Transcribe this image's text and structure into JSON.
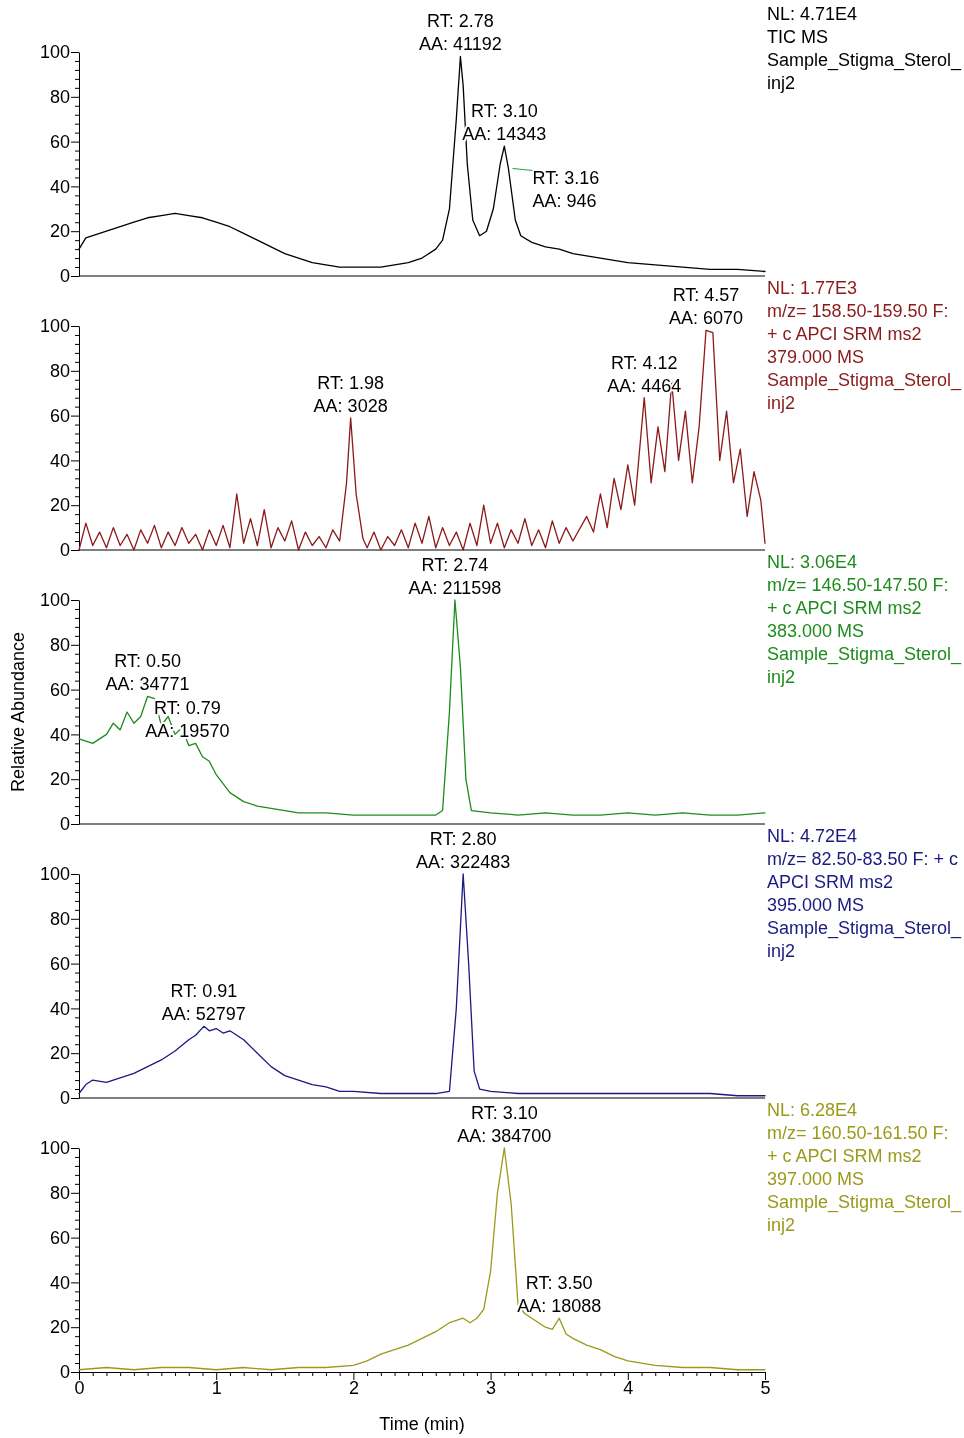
{
  "chart_data": [
    {
      "type": "line",
      "xlim": [
        0,
        5
      ],
      "ylim": [
        0,
        100
      ],
      "tick_labels": "y",
      "yticks": [
        0,
        {
          "value": 4,
          "label": null
        },
        {
          "value": 8,
          "label": null
        },
        {
          "value": 12,
          "label": null
        },
        {
          "value": 16,
          "label": null
        },
        20,
        {
          "value": 24,
          "label": null
        },
        {
          "value": 28,
          "label": null
        },
        {
          "value": 32,
          "label": null
        },
        {
          "value": 36,
          "label": null
        },
        40,
        {
          "value": 44,
          "label": null
        },
        {
          "value": 48,
          "label": null
        },
        {
          "value": 52,
          "label": null
        },
        {
          "value": 56,
          "label": null
        },
        60,
        {
          "value": 64,
          "label": null
        },
        {
          "value": 68,
          "label": null
        },
        {
          "value": 72,
          "label": null
        },
        {
          "value": 76,
          "label": null
        },
        80,
        {
          "value": 84,
          "label": null
        },
        {
          "value": 88,
          "label": null
        },
        {
          "value": 92,
          "label": null
        },
        {
          "value": 96,
          "label": null
        },
        100
      ],
      "series": [
        {
          "color": "#000000",
          "x": [
            0,
            0.05,
            0.1,
            0.2,
            0.3,
            0.4,
            0.5,
            0.6,
            0.7,
            0.8,
            0.9,
            1.0,
            1.1,
            1.2,
            1.3,
            1.4,
            1.5,
            1.6,
            1.7,
            1.8,
            1.9,
            2.0,
            2.1,
            2.2,
            2.3,
            2.4,
            2.5,
            2.6,
            2.65,
            2.7,
            2.75,
            2.78,
            2.8,
            2.83,
            2.87,
            2.92,
            2.97,
            3.02,
            3.07,
            3.1,
            3.13,
            3.18,
            3.22,
            3.3,
            3.4,
            3.5,
            3.6,
            3.7,
            3.8,
            3.9,
            4.0,
            4.2,
            4.4,
            4.6,
            4.8,
            5
          ],
          "values": [
            12,
            17,
            18,
            20,
            22,
            24,
            26,
            27,
            28,
            27,
            26,
            24,
            22,
            19,
            16,
            13,
            10,
            8,
            6,
            5,
            4,
            4,
            4,
            4,
            5,
            6,
            8,
            12,
            16,
            30,
            70,
            98,
            85,
            50,
            25,
            18,
            20,
            30,
            50,
            58,
            48,
            25,
            18,
            15,
            13,
            12,
            10,
            9,
            8,
            7,
            6,
            5,
            4,
            3,
            3,
            2
          ]
        }
      ],
      "annotations": [
        {
          "text": "RT: 2.78\nAA: 41192",
          "x": 2.78,
          "y": 98
        },
        {
          "text": "RT: 3.10\nAA: 14343",
          "x": 3.1,
          "y": 58
        },
        {
          "text": "RT: 3.16\nAA: 946",
          "x": 3.16,
          "y": 48
        },
        "NL: 4.71E4",
        "TIC  MS",
        "Sample_Stigma_Sterol_inj2"
      ]
    },
    {
      "type": "line",
      "xlim": [
        0,
        5
      ],
      "ylim": [
        0,
        100
      ],
      "tick_labels": "y",
      "yticks": [
        0,
        {
          "value": 4,
          "label": null
        },
        {
          "value": 8,
          "label": null
        },
        {
          "value": 12,
          "label": null
        },
        {
          "value": 16,
          "label": null
        },
        20,
        {
          "value": 24,
          "label": null
        },
        {
          "value": 28,
          "label": null
        },
        {
          "value": 32,
          "label": null
        },
        {
          "value": 36,
          "label": null
        },
        40,
        {
          "value": 44,
          "label": null
        },
        {
          "value": 48,
          "label": null
        },
        {
          "value": 52,
          "label": null
        },
        {
          "value": 56,
          "label": null
        },
        60,
        {
          "value": 64,
          "label": null
        },
        {
          "value": 68,
          "label": null
        },
        {
          "value": 72,
          "label": null
        },
        {
          "value": 76,
          "label": null
        },
        80,
        {
          "value": 84,
          "label": null
        },
        {
          "value": 88,
          "label": null
        },
        {
          "value": 92,
          "label": null
        },
        {
          "value": 96,
          "label": null
        },
        100
      ],
      "series": [
        {
          "color": "#8b1a1a",
          "x": [
            0,
            0.05,
            0.1,
            0.15,
            0.2,
            0.25,
            0.3,
            0.35,
            0.4,
            0.45,
            0.5,
            0.55,
            0.6,
            0.65,
            0.7,
            0.75,
            0.8,
            0.85,
            0.9,
            0.95,
            1.0,
            1.05,
            1.1,
            1.15,
            1.2,
            1.25,
            1.3,
            1.35,
            1.4,
            1.45,
            1.5,
            1.55,
            1.6,
            1.65,
            1.7,
            1.75,
            1.8,
            1.85,
            1.9,
            1.95,
            1.98,
            2.02,
            2.07,
            2.1,
            2.15,
            2.2,
            2.25,
            2.3,
            2.35,
            2.4,
            2.45,
            2.5,
            2.55,
            2.6,
            2.65,
            2.7,
            2.75,
            2.8,
            2.85,
            2.9,
            2.95,
            3.0,
            3.05,
            3.1,
            3.15,
            3.2,
            3.25,
            3.3,
            3.35,
            3.4,
            3.45,
            3.5,
            3.55,
            3.6,
            3.7,
            3.75,
            3.8,
            3.85,
            3.9,
            3.95,
            4.0,
            4.05,
            4.12,
            4.17,
            4.22,
            4.27,
            4.32,
            4.37,
            4.42,
            4.47,
            4.52,
            4.57,
            4.62,
            4.67,
            4.72,
            4.77,
            4.82,
            4.87,
            4.92,
            4.97,
            5
          ],
          "values": [
            0,
            12,
            2,
            8,
            1,
            10,
            2,
            7,
            0,
            9,
            3,
            11,
            1,
            8,
            2,
            10,
            3,
            7,
            0,
            9,
            2,
            11,
            1,
            25,
            3,
            14,
            2,
            18,
            1,
            10,
            4,
            13,
            0,
            8,
            2,
            6,
            1,
            9,
            4,
            30,
            59,
            25,
            5,
            1,
            8,
            0,
            6,
            2,
            9,
            1,
            12,
            3,
            15,
            1,
            10,
            2,
            8,
            0,
            12,
            2,
            20,
            3,
            12,
            1,
            9,
            3,
            14,
            2,
            9,
            1,
            13,
            3,
            10,
            4,
            15,
            8,
            25,
            10,
            32,
            18,
            38,
            20,
            68,
            30,
            55,
            35,
            75,
            40,
            62,
            30,
            55,
            98,
            97,
            40,
            62,
            30,
            45,
            15,
            35,
            22,
            3
          ]
        }
      ],
      "annotations": [
        {
          "text": "RT: 1.98\nAA: 3028",
          "x": 1.98,
          "y": 59
        },
        {
          "text": "RT: 4.12\nAA: 4464",
          "x": 4.12,
          "y": 68
        },
        {
          "text": "RT: 4.57\nAA: 6070",
          "x": 4.57,
          "y": 98
        },
        "NL: 1.77E3",
        "m/z= 158.50-159.50 F: + c APCI SRM ms2 379.000  MS",
        "Sample_Stigma_Sterol_inj2"
      ]
    },
    {
      "type": "line",
      "xlim": [
        0,
        5
      ],
      "ylim": [
        0,
        100
      ],
      "tick_labels": "y",
      "ylabel": "Relative Abundance",
      "yticks": [
        0,
        {
          "value": 4,
          "label": null
        },
        {
          "value": 8,
          "label": null
        },
        {
          "value": 12,
          "label": null
        },
        {
          "value": 16,
          "label": null
        },
        20,
        {
          "value": 24,
          "label": null
        },
        {
          "value": 28,
          "label": null
        },
        {
          "value": 32,
          "label": null
        },
        {
          "value": 36,
          "label": null
        },
        40,
        {
          "value": 44,
          "label": null
        },
        {
          "value": 48,
          "label": null
        },
        {
          "value": 52,
          "label": null
        },
        {
          "value": 56,
          "label": null
        },
        60,
        {
          "value": 64,
          "label": null
        },
        {
          "value": 68,
          "label": null
        },
        {
          "value": 72,
          "label": null
        },
        {
          "value": 76,
          "label": null
        },
        80,
        {
          "value": 84,
          "label": null
        },
        {
          "value": 88,
          "label": null
        },
        {
          "value": 92,
          "label": null
        },
        {
          "value": 96,
          "label": null
        },
        100
      ],
      "series": [
        {
          "color": "#1e8b1e",
          "x": [
            0,
            0.1,
            0.2,
            0.25,
            0.3,
            0.35,
            0.4,
            0.45,
            0.5,
            0.55,
            0.6,
            0.65,
            0.7,
            0.75,
            0.8,
            0.85,
            0.9,
            0.95,
            1.0,
            1.05,
            1.1,
            1.2,
            1.3,
            1.4,
            1.5,
            1.6,
            1.8,
            2.0,
            2.2,
            2.4,
            2.6,
            2.65,
            2.7,
            2.74,
            2.78,
            2.82,
            2.86,
            3.0,
            3.2,
            3.4,
            3.6,
            3.8,
            4.0,
            4.2,
            4.4,
            4.6,
            4.8,
            5
          ],
          "values": [
            38,
            36,
            40,
            45,
            42,
            50,
            45,
            48,
            57,
            56,
            44,
            48,
            40,
            43,
            35,
            36,
            30,
            28,
            22,
            18,
            14,
            10,
            8,
            7,
            6,
            5,
            5,
            4,
            4,
            4,
            4,
            6,
            50,
            100,
            70,
            20,
            6,
            5,
            4,
            5,
            4,
            4,
            5,
            4,
            5,
            4,
            4,
            5
          ]
        }
      ],
      "annotations": [
        {
          "text": "RT: 0.50\nAA: 34771",
          "x": 0.5,
          "y": 57
        },
        {
          "text": "RT: 0.79\nAA: 19570",
          "x": 0.79,
          "y": 36
        },
        {
          "text": "RT: 2.74\nAA: 211598",
          "x": 2.74,
          "y": 100
        },
        "NL: 3.06E4",
        "m/z= 146.50-147.50 F: + c APCI SRM ms2 383.000  MS",
        "Sample_Stigma_Sterol_inj2"
      ]
    },
    {
      "type": "line",
      "xlim": [
        0,
        5
      ],
      "ylim": [
        0,
        100
      ],
      "tick_labels": "y",
      "yticks": [
        0,
        {
          "value": 4,
          "label": null
        },
        {
          "value": 8,
          "label": null
        },
        {
          "value": 12,
          "label": null
        },
        {
          "value": 16,
          "label": null
        },
        20,
        {
          "value": 24,
          "label": null
        },
        {
          "value": 28,
          "label": null
        },
        {
          "value": 32,
          "label": null
        },
        {
          "value": 36,
          "label": null
        },
        40,
        {
          "value": 44,
          "label": null
        },
        {
          "value": 48,
          "label": null
        },
        {
          "value": 52,
          "label": null
        },
        {
          "value": 56,
          "label": null
        },
        60,
        {
          "value": 64,
          "label": null
        },
        {
          "value": 68,
          "label": null
        },
        {
          "value": 72,
          "label": null
        },
        {
          "value": 76,
          "label": null
        },
        80,
        {
          "value": 84,
          "label": null
        },
        {
          "value": 88,
          "label": null
        },
        {
          "value": 92,
          "label": null
        },
        {
          "value": 96,
          "label": null
        },
        100
      ],
      "series": [
        {
          "color": "#1a1a80",
          "x": [
            0,
            0.05,
            0.1,
            0.2,
            0.3,
            0.4,
            0.5,
            0.6,
            0.7,
            0.8,
            0.85,
            0.91,
            0.95,
            1.0,
            1.05,
            1.1,
            1.15,
            1.2,
            1.3,
            1.4,
            1.5,
            1.6,
            1.7,
            1.8,
            1.9,
            2.0,
            2.2,
            2.4,
            2.6,
            2.7,
            2.75,
            2.8,
            2.84,
            2.88,
            2.92,
            3.0,
            3.2,
            3.4,
            3.6,
            3.8,
            4.0,
            4.2,
            4.4,
            4.6,
            4.8,
            5
          ],
          "values": [
            2,
            6,
            8,
            7,
            9,
            11,
            14,
            17,
            21,
            26,
            28,
            32,
            30,
            31,
            29,
            30,
            28,
            26,
            20,
            14,
            10,
            8,
            6,
            5,
            3,
            3,
            2,
            2,
            2,
            3,
            40,
            100,
            60,
            12,
            4,
            3,
            2,
            2,
            2,
            2,
            2,
            2,
            2,
            2,
            1,
            1
          ]
        }
      ],
      "annotations": [
        {
          "text": "RT: 0.91\nAA: 52797",
          "x": 0.91,
          "y": 32
        },
        {
          "text": "RT: 2.80\nAA: 322483",
          "x": 2.8,
          "y": 100
        },
        "NL: 4.72E4",
        "m/z= 82.50-83.50 F: + c APCI SRM ms2 395.000  MS",
        "Sample_Stigma_Sterol_inj2"
      ]
    },
    {
      "type": "line",
      "xlim": [
        0,
        5
      ],
      "ylim": [
        0,
        100
      ],
      "xlabel": "Time (min)",
      "xticks": [
        0,
        {
          "value": 0.1,
          "label": null
        },
        {
          "value": 0.2,
          "label": null
        },
        {
          "value": 0.3,
          "label": null
        },
        {
          "value": 0.4,
          "label": null
        },
        {
          "value": 0.5,
          "label": null
        },
        {
          "value": 0.6,
          "label": null
        },
        {
          "value": 0.7,
          "label": null
        },
        {
          "value": 0.8,
          "label": null
        },
        {
          "value": 0.9,
          "label": null
        },
        1,
        {
          "value": 1.1,
          "label": null
        },
        {
          "value": 1.2,
          "label": null
        },
        {
          "value": 1.3,
          "label": null
        },
        {
          "value": 1.4,
          "label": null
        },
        {
          "value": 1.5,
          "label": null
        },
        {
          "value": 1.6,
          "label": null
        },
        {
          "value": 1.7,
          "label": null
        },
        {
          "value": 1.8,
          "label": null
        },
        {
          "value": 1.9,
          "label": null
        },
        2,
        {
          "value": 2.1,
          "label": null
        },
        {
          "value": 2.2,
          "label": null
        },
        {
          "value": 2.3,
          "label": null
        },
        {
          "value": 2.4,
          "label": null
        },
        {
          "value": 2.5,
          "label": null
        },
        {
          "value": 2.6,
          "label": null
        },
        {
          "value": 2.7,
          "label": null
        },
        {
          "value": 2.8,
          "label": null
        },
        {
          "value": 2.9,
          "label": null
        },
        3,
        {
          "value": 3.1,
          "label": null
        },
        {
          "value": 3.2,
          "label": null
        },
        {
          "value": 3.3,
          "label": null
        },
        {
          "value": 3.4,
          "label": null
        },
        {
          "value": 3.5,
          "label": null
        },
        {
          "value": 3.6,
          "label": null
        },
        {
          "value": 3.7,
          "label": null
        },
        {
          "value": 3.8,
          "label": null
        },
        {
          "value": 3.9,
          "label": null
        },
        4,
        {
          "value": 4.1,
          "label": null
        },
        {
          "value": 4.2,
          "label": null
        },
        {
          "value": 4.3,
          "label": null
        },
        {
          "value": 4.4,
          "label": null
        },
        {
          "value": 4.5,
          "label": null
        },
        {
          "value": 4.6,
          "label": null
        },
        {
          "value": 4.7,
          "label": null
        },
        {
          "value": 4.8,
          "label": null
        },
        {
          "value": 4.9,
          "label": null
        },
        5
      ],
      "yticks": [
        0,
        {
          "value": 4,
          "label": null
        },
        {
          "value": 8,
          "label": null
        },
        {
          "value": 12,
          "label": null
        },
        {
          "value": 16,
          "label": null
        },
        20,
        {
          "value": 24,
          "label": null
        },
        {
          "value": 28,
          "label": null
        },
        {
          "value": 32,
          "label": null
        },
        {
          "value": 36,
          "label": null
        },
        40,
        {
          "value": 44,
          "label": null
        },
        {
          "value": 48,
          "label": null
        },
        {
          "value": 52,
          "label": null
        },
        {
          "value": 56,
          "label": null
        },
        60,
        {
          "value": 64,
          "label": null
        },
        {
          "value": 68,
          "label": null
        },
        {
          "value": 72,
          "label": null
        },
        {
          "value": 76,
          "label": null
        },
        80,
        {
          "value": 84,
          "label": null
        },
        {
          "value": 88,
          "label": null
        },
        {
          "value": 92,
          "label": null
        },
        {
          "value": 96,
          "label": null
        },
        100
      ],
      "series": [
        {
          "color": "#9a9a1a",
          "x": [
            0,
            0.2,
            0.4,
            0.6,
            0.8,
            1.0,
            1.2,
            1.4,
            1.6,
            1.8,
            2.0,
            2.1,
            2.2,
            2.3,
            2.4,
            2.5,
            2.6,
            2.7,
            2.8,
            2.85,
            2.9,
            2.95,
            3.0,
            3.05,
            3.1,
            3.15,
            3.2,
            3.25,
            3.3,
            3.4,
            3.45,
            3.5,
            3.55,
            3.6,
            3.7,
            3.8,
            3.9,
            4.0,
            4.2,
            4.4,
            4.6,
            4.8,
            5
          ],
          "values": [
            1,
            2,
            1,
            2,
            2,
            1,
            2,
            1,
            2,
            2,
            3,
            5,
            8,
            10,
            12,
            15,
            18,
            22,
            24,
            22,
            24,
            28,
            45,
            80,
            100,
            75,
            30,
            26,
            24,
            20,
            19,
            24,
            17,
            15,
            12,
            10,
            7,
            5,
            3,
            2,
            2,
            1,
            1
          ]
        }
      ],
      "annotations": [
        {
          "text": "RT: 3.10\nAA: 384700",
          "x": 3.1,
          "y": 100
        },
        {
          "text": "RT: 3.50\nAA: 18088",
          "x": 3.5,
          "y": 24
        },
        "NL: 6.28E4",
        "m/z= 160.50-161.50 F: + c APCI SRM ms2 397.000  MS",
        "Sample_Stigma_Sterol_inj2"
      ]
    }
  ]
}
